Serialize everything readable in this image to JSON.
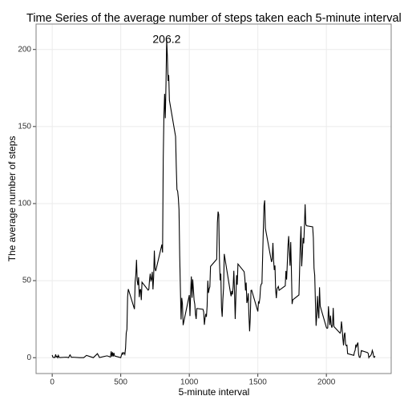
{
  "chart_data": {
    "type": "line",
    "title": "Time Series  of the average number of steps taken each 5-minute interval",
    "xlabel": "5-minute interval",
    "ylabel": "The average number of steps",
    "color": "#000000",
    "grid": true,
    "annotation": {
      "text": "206.2",
      "x": 835,
      "y": 206.2
    },
    "xlim": [
      -117.75,
      2472.75
    ],
    "xticks": [
      0,
      500,
      1000,
      1500,
      2000
    ],
    "ylim": [
      -10.3,
      216.5
    ],
    "yticks": [
      0,
      50,
      100,
      150,
      200
    ],
    "x": [
      0,
      5,
      10,
      15,
      20,
      25,
      30,
      35,
      40,
      45,
      50,
      55,
      100,
      110,
      120,
      125,
      130,
      140,
      150,
      200,
      230,
      250,
      300,
      330,
      345,
      400,
      425,
      430,
      435,
      440,
      445,
      450,
      455,
      500,
      505,
      510,
      515,
      520,
      525,
      530,
      535,
      540,
      545,
      550,
      555,
      600,
      605,
      610,
      615,
      620,
      625,
      630,
      635,
      640,
      645,
      650,
      655,
      700,
      705,
      710,
      715,
      720,
      725,
      730,
      735,
      740,
      745,
      750,
      755,
      800,
      805,
      810,
      815,
      820,
      825,
      830,
      835,
      840,
      845,
      850,
      855,
      900,
      905,
      910,
      915,
      920,
      925,
      930,
      935,
      940,
      945,
      950,
      955,
      1000,
      1005,
      1010,
      1015,
      1020,
      1025,
      1030,
      1035,
      1040,
      1045,
      1050,
      1055,
      1100,
      1105,
      1110,
      1115,
      1120,
      1125,
      1130,
      1135,
      1140,
      1145,
      1150,
      1155,
      1200,
      1205,
      1210,
      1215,
      1220,
      1225,
      1230,
      1235,
      1240,
      1245,
      1250,
      1255,
      1300,
      1305,
      1310,
      1315,
      1320,
      1325,
      1330,
      1335,
      1340,
      1345,
      1350,
      1355,
      1400,
      1405,
      1410,
      1415,
      1420,
      1425,
      1430,
      1435,
      1440,
      1445,
      1450,
      1455,
      1500,
      1505,
      1510,
      1515,
      1520,
      1525,
      1530,
      1535,
      1540,
      1545,
      1550,
      1555,
      1600,
      1605,
      1610,
      1615,
      1620,
      1625,
      1630,
      1635,
      1640,
      1645,
      1650,
      1655,
      1700,
      1705,
      1710,
      1715,
      1720,
      1725,
      1730,
      1735,
      1740,
      1745,
      1750,
      1755,
      1800,
      1805,
      1810,
      1815,
      1820,
      1825,
      1830,
      1835,
      1840,
      1845,
      1850,
      1855,
      1900,
      1905,
      1910,
      1915,
      1920,
      1925,
      1930,
      1935,
      1940,
      1945,
      1950,
      1955,
      2000,
      2005,
      2010,
      2015,
      2020,
      2025,
      2030,
      2035,
      2040,
      2045,
      2050,
      2055,
      2100,
      2105,
      2110,
      2115,
      2120,
      2125,
      2130,
      2135,
      2140,
      2145,
      2150,
      2155,
      2200,
      2205,
      2210,
      2215,
      2220,
      2225,
      2230,
      2235,
      2240,
      2245,
      2250,
      2255,
      2300,
      2305,
      2310,
      2315,
      2320,
      2325,
      2330,
      2335,
      2340,
      2345,
      2350,
      2355
    ],
    "values": [
      1.7,
      0.3,
      0.1,
      0.2,
      0.1,
      2.1,
      0.5,
      0.9,
      0,
      1.5,
      0.3,
      0.1,
      0.3,
      0.2,
      0,
      1.1,
      1.8,
      0.2,
      0.3,
      0,
      0,
      1.5,
      0,
      2.6,
      0.1,
      1.2,
      0.4,
      4.1,
      0.7,
      3.5,
      0.8,
      3.1,
      1.1,
      0,
      1.6,
      3,
      2.2,
      3.3,
      3,
      2.1,
      6.1,
      16,
      18.3,
      39.5,
      44.5,
      31.5,
      49.3,
      53.8,
      63.5,
      50,
      47.1,
      52.2,
      39.3,
      44,
      44.2,
      37.4,
      49,
      43.8,
      44.4,
      50.5,
      54.5,
      49.9,
      50.9,
      55.7,
      44.3,
      52.3,
      69.5,
      57.8,
      56.2,
      73.4,
      68.2,
      129.4,
      157.5,
      171.2,
      155.4,
      177.3,
      206.2,
      195.9,
      179.6,
      183.4,
      167,
      143.5,
      124,
      109.1,
      108.1,
      103.7,
      96,
      66.2,
      45.2,
      24.8,
      38.8,
      35,
      21.1,
      40.6,
      27,
      42.4,
      52.7,
      38.9,
      50.8,
      44.3,
      37.4,
      34.7,
      28.3,
      25.1,
      31.9,
      31.4,
      29.7,
      21.3,
      25.5,
      28.4,
      26.5,
      33.4,
      50,
      42,
      44.6,
      46,
      59.2,
      63.9,
      87.6,
      94.8,
      92.8,
      63.4,
      50.2,
      54.5,
      32.4,
      26.5,
      37.7,
      45.1,
      67.3,
      42.3,
      39.9,
      43.3,
      41,
      46.2,
      56.4,
      42.8,
      25.1,
      40,
      53.5,
      47.3,
      60.8,
      55.8,
      52,
      43.6,
      48.7,
      35.5,
      37.5,
      41.8,
      27.5,
      17.1,
      26.1,
      43.6,
      43.8,
      30,
      36.1,
      35.5,
      38.8,
      46,
      47.8,
      48.1,
      65.3,
      82.9,
      98.7,
      102.1,
      84,
      62.1,
      64.1,
      74.5,
      63.2,
      56.9,
      59.8,
      43.9,
      38.6,
      44.7,
      45.5,
      46.2,
      43.7,
      46.6,
      56.3,
      50.7,
      61.2,
      72.7,
      78.9,
      68.9,
      59.7,
      75.1,
      56.5,
      34.8,
      37.5,
      40.7,
      58,
      74.7,
      85.3,
      59.3,
      67.8,
      77.7,
      74.2,
      85.3,
      99.5,
      86.6,
      85.6,
      84.9,
      77.8,
      58,
      53.4,
      36.3,
      20.7,
      27.4,
      40,
      30.2,
      25.5,
      45.7,
      33.5,
      19.6,
      19,
      19.3,
      33.3,
      26.8,
      21.2,
      27.3,
      21.3,
      19.5,
      21.3,
      32.3,
      20.2,
      15.9,
      17.2,
      23.5,
      19.2,
      12.5,
      8,
      14.7,
      16.3,
      8.7,
      7.8,
      8.1,
      2.6,
      1.5,
      3.7,
      4.8,
      8.5,
      7.1,
      8.7,
      9.8,
      2.2,
      0.3,
      0.1,
      1.6,
      4.6,
      3.3,
      2.8,
      0,
      0.8,
      1,
      1.6,
      2.6,
      4.7,
      3.3,
      0.6,
      0.2,
      1.1
    ]
  }
}
